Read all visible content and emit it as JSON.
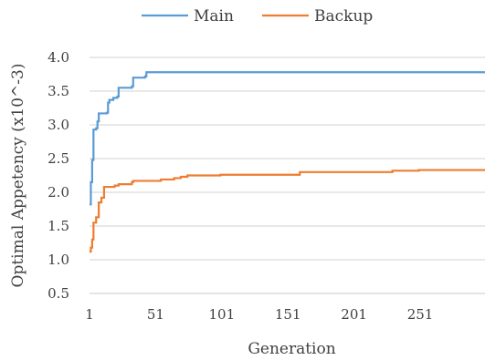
{
  "chart_data": {
    "type": "line",
    "title": "",
    "xlabel": "Generation",
    "ylabel": "Optimal Appetency (x10^-3)",
    "xlim": [
      1,
      300
    ],
    "ylim": [
      0.5,
      4.0
    ],
    "x_ticks": [
      1,
      51,
      101,
      151,
      201,
      251
    ],
    "y_ticks": [
      0.5,
      1.0,
      1.5,
      2.0,
      2.5,
      3.0,
      3.5,
      4.0
    ],
    "y_tick_labels": [
      "0.5",
      "1.0",
      "1.5",
      "2.0",
      "2.5",
      "3.0",
      "3.5",
      "4.0"
    ],
    "grid": true,
    "legend_position": "top",
    "series": [
      {
        "name": "Main",
        "color": "#5b9bd5",
        "step": true,
        "points": [
          [
            1,
            1.82
          ],
          [
            2,
            2.15
          ],
          [
            3,
            2.48
          ],
          [
            4,
            2.93
          ],
          [
            6,
            2.95
          ],
          [
            7,
            3.05
          ],
          [
            8,
            3.17
          ],
          [
            14,
            3.18
          ],
          [
            15,
            3.33
          ],
          [
            16,
            3.37
          ],
          [
            19,
            3.4
          ],
          [
            22,
            3.42
          ],
          [
            23,
            3.55
          ],
          [
            33,
            3.57
          ],
          [
            34,
            3.7
          ],
          [
            43,
            3.72
          ],
          [
            44,
            3.78
          ],
          [
            300,
            3.78
          ]
        ]
      },
      {
        "name": "Backup",
        "color": "#ed7d31",
        "step": true,
        "points": [
          [
            1,
            1.12
          ],
          [
            2,
            1.18
          ],
          [
            3,
            1.3
          ],
          [
            4,
            1.55
          ],
          [
            6,
            1.63
          ],
          [
            8,
            1.85
          ],
          [
            10,
            1.92
          ],
          [
            12,
            2.08
          ],
          [
            20,
            2.1
          ],
          [
            23,
            2.12
          ],
          [
            33,
            2.15
          ],
          [
            34,
            2.17
          ],
          [
            55,
            2.19
          ],
          [
            65,
            2.21
          ],
          [
            70,
            2.23
          ],
          [
            75,
            2.25
          ],
          [
            100,
            2.26
          ],
          [
            160,
            2.3
          ],
          [
            230,
            2.32
          ],
          [
            250,
            2.33
          ],
          [
            300,
            2.34
          ]
        ]
      }
    ]
  }
}
